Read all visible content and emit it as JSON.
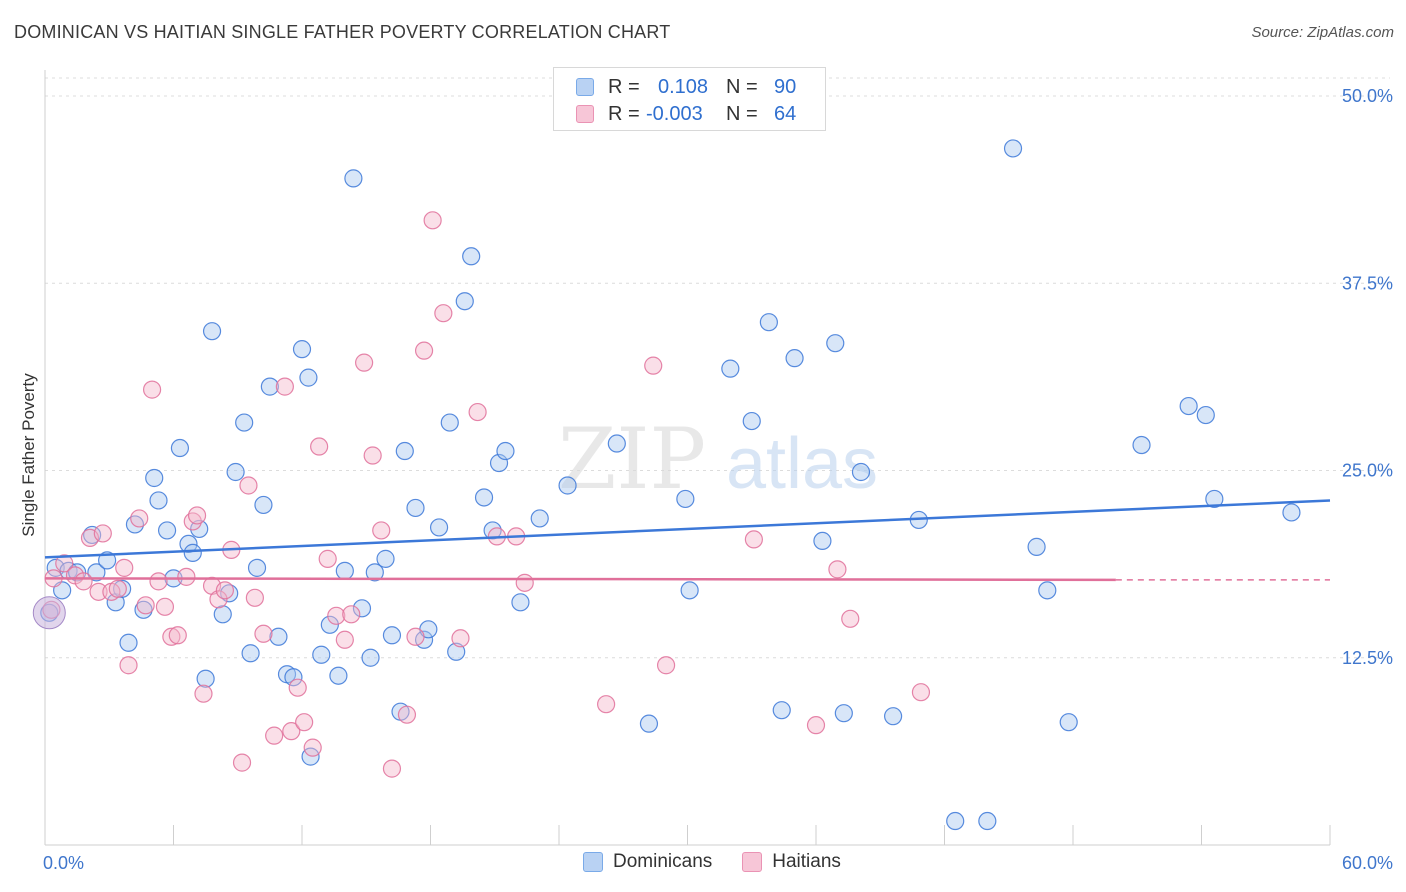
{
  "header": {
    "title": "DOMINICAN VS HAITIAN SINGLE FATHER POVERTY CORRELATION CHART",
    "source": "Source: ZipAtlas.com"
  },
  "legend": {
    "rows": [
      {
        "r_label": "R =",
        "r_value": "0.108",
        "n_label": "N =",
        "n_value": "90",
        "color": "#7aaae8",
        "fill": "#b9d2f3"
      },
      {
        "r_label": "R =",
        "r_value": "-0.003",
        "n_label": "N =",
        "n_value": "64",
        "color": "#ea93b4",
        "fill": "#f7c6d7"
      }
    ],
    "bottom": [
      "Dominicans",
      "Haitians"
    ]
  },
  "watermark": {
    "zip": "ZIP",
    "atlas": "atlas"
  },
  "chart_data": {
    "type": "scatter",
    "title": "DOMINICAN VS HAITIAN SINGLE FATHER POVERTY CORRELATION CHART",
    "xlabel": "",
    "ylabel": "Single Father Poverty",
    "xlim": [
      0,
      60
    ],
    "ylim": [
      0,
      52
    ],
    "x_tick_labels": [
      "0.0%",
      "60.0%"
    ],
    "y_ticks": [
      12.5,
      25.0,
      37.5,
      50.0
    ],
    "y_tick_labels": [
      "12.5%",
      "25.0%",
      "37.5%",
      "50.0%"
    ],
    "grid": "horizontal dashed",
    "legend_position": "top-center",
    "series": [
      {
        "name": "Dominicans",
        "color": "#3c78d8",
        "fill": "#a9c7f0",
        "trend": {
          "x": [
            0,
            60
          ],
          "y": [
            19.2,
            23.0
          ]
        },
        "points": [
          [
            0.5,
            18.5
          ],
          [
            0.8,
            17.0
          ],
          [
            1.1,
            18.3
          ],
          [
            1.5,
            18.2
          ],
          [
            2.2,
            20.7
          ],
          [
            2.4,
            18.2
          ],
          [
            2.9,
            19.0
          ],
          [
            3.3,
            16.2
          ],
          [
            3.6,
            17.1
          ],
          [
            3.9,
            13.5
          ],
          [
            4.2,
            21.4
          ],
          [
            4.6,
            15.7
          ],
          [
            5.1,
            24.5
          ],
          [
            5.3,
            23.0
          ],
          [
            5.7,
            21.0
          ],
          [
            6.0,
            17.8
          ],
          [
            6.3,
            26.5
          ],
          [
            6.7,
            20.1
          ],
          [
            6.9,
            19.5
          ],
          [
            7.2,
            21.1
          ],
          [
            7.5,
            11.1
          ],
          [
            7.8,
            34.3
          ],
          [
            8.3,
            15.4
          ],
          [
            8.6,
            16.8
          ],
          [
            8.9,
            24.9
          ],
          [
            9.3,
            28.2
          ],
          [
            9.6,
            12.8
          ],
          [
            9.9,
            18.5
          ],
          [
            10.2,
            22.7
          ],
          [
            10.5,
            30.6
          ],
          [
            10.9,
            13.9
          ],
          [
            11.3,
            11.4
          ],
          [
            11.6,
            11.2
          ],
          [
            12.0,
            33.1
          ],
          [
            12.3,
            31.2
          ],
          [
            12.4,
            5.9
          ],
          [
            12.9,
            12.7
          ],
          [
            13.3,
            14.7
          ],
          [
            13.7,
            11.3
          ],
          [
            14.0,
            18.3
          ],
          [
            14.4,
            44.5
          ],
          [
            14.8,
            15.8
          ],
          [
            15.2,
            12.5
          ],
          [
            15.4,
            18.2
          ],
          [
            15.9,
            19.1
          ],
          [
            16.2,
            14.0
          ],
          [
            16.6,
            8.9
          ],
          [
            16.8,
            26.3
          ],
          [
            17.3,
            22.5
          ],
          [
            17.7,
            13.7
          ],
          [
            17.9,
            14.4
          ],
          [
            18.4,
            21.2
          ],
          [
            18.9,
            28.2
          ],
          [
            19.2,
            12.9
          ],
          [
            19.6,
            36.3
          ],
          [
            19.9,
            39.3
          ],
          [
            20.5,
            23.2
          ],
          [
            20.9,
            21.0
          ],
          [
            21.2,
            25.5
          ],
          [
            21.5,
            26.3
          ],
          [
            22.2,
            16.2
          ],
          [
            23.1,
            21.8
          ],
          [
            24.4,
            24.0
          ],
          [
            26.7,
            26.8
          ],
          [
            28.2,
            8.1
          ],
          [
            29.9,
            23.1
          ],
          [
            30.1,
            17.0
          ],
          [
            32.0,
            31.8
          ],
          [
            33.0,
            28.3
          ],
          [
            33.8,
            34.9
          ],
          [
            34.4,
            9.0
          ],
          [
            35.0,
            32.5
          ],
          [
            36.3,
            20.3
          ],
          [
            36.9,
            33.5
          ],
          [
            37.3,
            8.8
          ],
          [
            38.1,
            24.9
          ],
          [
            39.6,
            8.6
          ],
          [
            40.8,
            21.7
          ],
          [
            42.5,
            1.6
          ],
          [
            44.0,
            1.6
          ],
          [
            45.2,
            46.5
          ],
          [
            46.3,
            19.9
          ],
          [
            46.8,
            17.0
          ],
          [
            47.8,
            8.2
          ],
          [
            51.2,
            26.7
          ],
          [
            53.4,
            29.3
          ],
          [
            54.2,
            28.7
          ],
          [
            54.6,
            23.1
          ],
          [
            58.2,
            22.2
          ],
          [
            0.2,
            15.5
          ]
        ]
      },
      {
        "name": "Haitians",
        "color": "#e0709a",
        "fill": "#f4b8cd",
        "trend": {
          "x": [
            0,
            50
          ],
          "y": [
            17.8,
            17.7
          ],
          "dash_to": 60
        },
        "points": [
          [
            0.4,
            17.8
          ],
          [
            0.9,
            18.8
          ],
          [
            1.4,
            18.0
          ],
          [
            1.8,
            17.6
          ],
          [
            2.1,
            20.5
          ],
          [
            2.5,
            16.9
          ],
          [
            2.7,
            20.8
          ],
          [
            3.1,
            16.9
          ],
          [
            3.4,
            17.1
          ],
          [
            3.7,
            18.5
          ],
          [
            3.9,
            12.0
          ],
          [
            4.4,
            21.8
          ],
          [
            4.7,
            16.0
          ],
          [
            5.0,
            30.4
          ],
          [
            5.3,
            17.6
          ],
          [
            5.6,
            15.9
          ],
          [
            5.9,
            13.9
          ],
          [
            6.2,
            14.0
          ],
          [
            6.6,
            17.9
          ],
          [
            6.9,
            21.6
          ],
          [
            7.1,
            22.0
          ],
          [
            7.4,
            10.1
          ],
          [
            7.8,
            17.3
          ],
          [
            8.1,
            16.4
          ],
          [
            8.4,
            17.0
          ],
          [
            8.7,
            19.7
          ],
          [
            9.2,
            5.5
          ],
          [
            9.5,
            24.0
          ],
          [
            9.8,
            16.5
          ],
          [
            10.2,
            14.1
          ],
          [
            10.7,
            7.3
          ],
          [
            11.2,
            30.6
          ],
          [
            11.5,
            7.6
          ],
          [
            11.8,
            10.5
          ],
          [
            12.1,
            8.2
          ],
          [
            12.5,
            6.5
          ],
          [
            12.8,
            26.6
          ],
          [
            13.2,
            19.1
          ],
          [
            13.6,
            15.3
          ],
          [
            14.0,
            13.7
          ],
          [
            14.3,
            15.4
          ],
          [
            14.9,
            32.2
          ],
          [
            15.3,
            26.0
          ],
          [
            15.7,
            21.0
          ],
          [
            16.2,
            5.1
          ],
          [
            16.9,
            8.7
          ],
          [
            17.3,
            13.9
          ],
          [
            17.7,
            33.0
          ],
          [
            18.1,
            41.7
          ],
          [
            18.6,
            35.5
          ],
          [
            19.4,
            13.8
          ],
          [
            20.2,
            28.9
          ],
          [
            21.1,
            20.6
          ],
          [
            22.0,
            20.6
          ],
          [
            26.2,
            9.4
          ],
          [
            28.4,
            32.0
          ],
          [
            29.0,
            12.0
          ],
          [
            33.1,
            20.4
          ],
          [
            36.0,
            8.0
          ],
          [
            37.0,
            18.4
          ],
          [
            37.6,
            15.1
          ],
          [
            40.9,
            10.2
          ],
          [
            0.3,
            15.7
          ],
          [
            22.4,
            17.5
          ]
        ]
      }
    ]
  }
}
